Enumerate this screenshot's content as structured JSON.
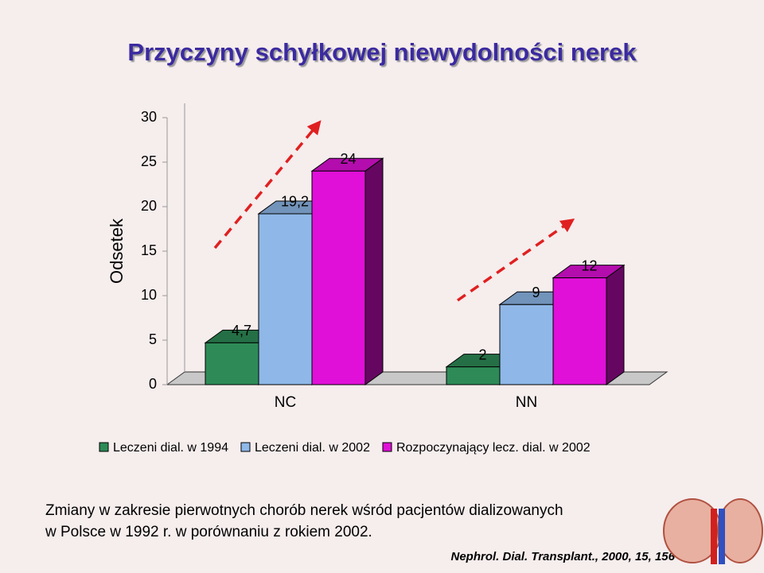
{
  "chart_data": {
    "type": "bar3d",
    "title": "Przyczyny schyłkowej niewydolności nerek",
    "ylabel": "Odsetek",
    "categories": [
      "NC",
      "NN"
    ],
    "series": [
      {
        "name": "Leczeni dial. w 1994",
        "color": "#2e8b57",
        "values": [
          4.7,
          2
        ],
        "value_labels": [
          "4,7",
          "2"
        ]
      },
      {
        "name": "Leczeni dial. w 2002",
        "color": "#8fb8e8",
        "values": [
          19.2,
          9
        ],
        "value_labels": [
          "19,2",
          "9"
        ]
      },
      {
        "name": "Rozpoczynający lecz. dial. w 2002",
        "color": "#e010d8",
        "values": [
          24,
          12
        ]
      }
    ],
    "ylim": [
      0,
      30
    ],
    "yticks": [
      0,
      5,
      10,
      15,
      20,
      25,
      30
    ],
    "annotations": [
      "Zmiany w zakresie pierwotnych chorób nerek wśród pacjentów dializowanych",
      "w Polsce w 1992 r. w porównaniu z rokiem 2002.",
      "Nephrol. Dial. Transplant., 2000, 15, 156"
    ]
  }
}
